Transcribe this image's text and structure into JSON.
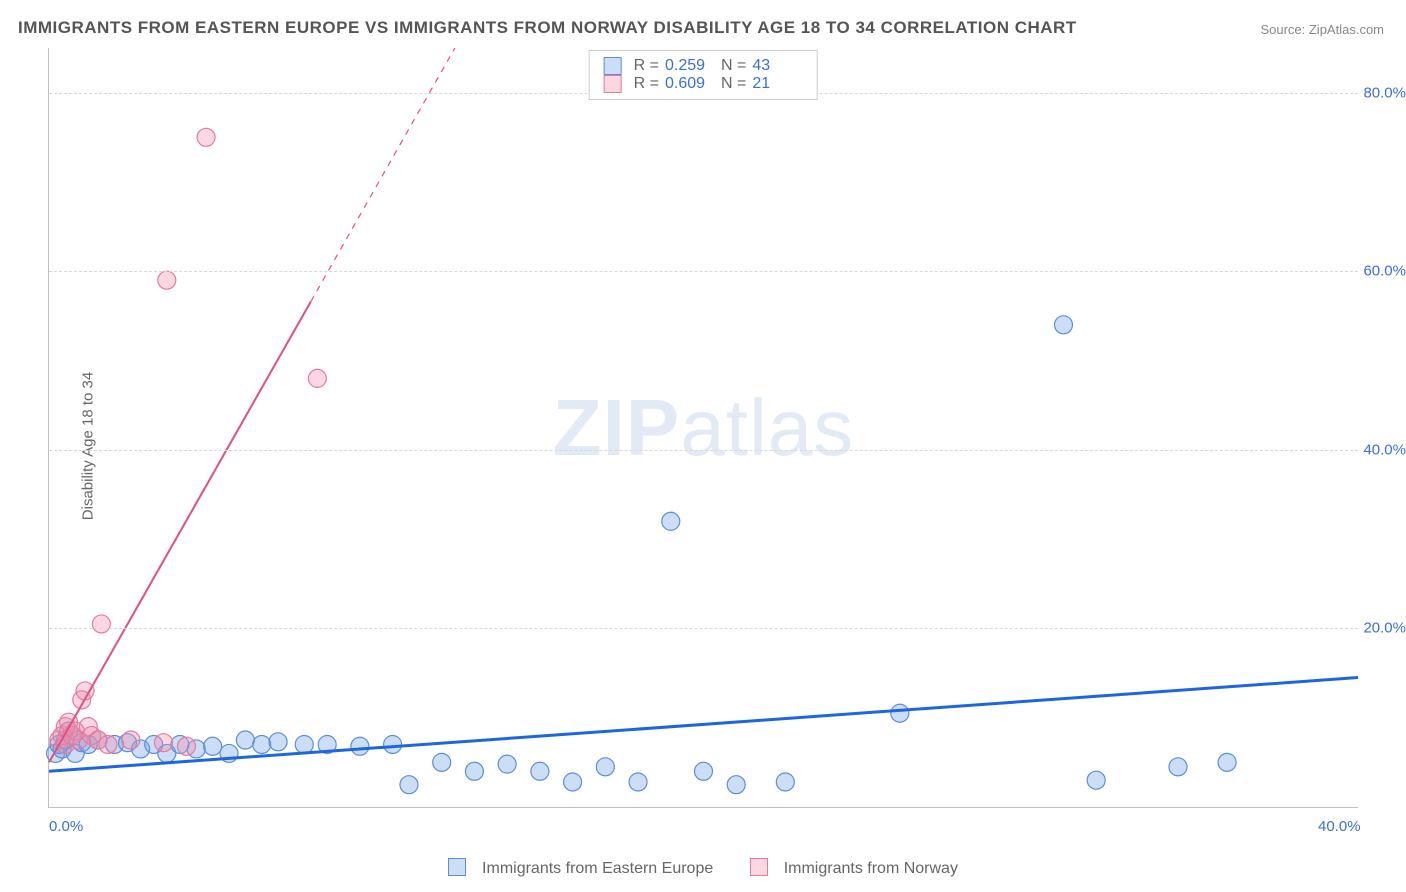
{
  "title": "IMMIGRANTS FROM EASTERN EUROPE VS IMMIGRANTS FROM NORWAY DISABILITY AGE 18 TO 34 CORRELATION CHART",
  "source": "Source: ZipAtlas.com",
  "watermark": {
    "bold": "ZIP",
    "rest": "atlas"
  },
  "y_axis_title": "Disability Age 18 to 34",
  "chart": {
    "type": "scatter",
    "background_color": "#ffffff",
    "grid_color": "#d8d8d8",
    "xlim": [
      0,
      40
    ],
    "ylim": [
      0,
      85
    ],
    "xticks": [
      {
        "value": 0,
        "label": "0.0%"
      },
      {
        "value": 40,
        "label": "40.0%"
      }
    ],
    "yticks": [
      {
        "value": 20,
        "label": "20.0%"
      },
      {
        "value": 40,
        "label": "40.0%"
      },
      {
        "value": 60,
        "label": "60.0%"
      },
      {
        "value": 80,
        "label": "80.0%"
      }
    ],
    "marker_radius": 9,
    "marker_stroke_width": 1.2,
    "tick_label_color": "#3b6fd6",
    "tick_label_fontsize": 15
  },
  "series": [
    {
      "key": "eastern_europe",
      "name": "Immigrants from Eastern Europe",
      "fill": "rgba(110,160,230,0.35)",
      "stroke": "#5a8fd6",
      "trend": {
        "color": "#1e66e0",
        "width": 3,
        "y_at_x0": 4.0,
        "y_at_x40": 14.5
      },
      "legend_r": "0.259",
      "legend_n": "43",
      "points": [
        [
          0.2,
          6.0
        ],
        [
          0.3,
          7.0
        ],
        [
          0.4,
          6.5
        ],
        [
          0.5,
          7.5
        ],
        [
          0.6,
          8.5
        ],
        [
          0.7,
          8.0
        ],
        [
          0.8,
          6.0
        ],
        [
          1.0,
          7.2
        ],
        [
          1.2,
          7.0
        ],
        [
          1.5,
          7.5
        ],
        [
          2.0,
          7.0
        ],
        [
          2.4,
          7.2
        ],
        [
          2.8,
          6.5
        ],
        [
          3.2,
          7.0
        ],
        [
          3.6,
          6.0
        ],
        [
          4.0,
          7.0
        ],
        [
          4.5,
          6.5
        ],
        [
          5.0,
          6.8
        ],
        [
          5.5,
          6.0
        ],
        [
          6.0,
          7.5
        ],
        [
          6.5,
          7.0
        ],
        [
          7.0,
          7.3
        ],
        [
          7.8,
          7.0
        ],
        [
          8.5,
          7.0
        ],
        [
          9.5,
          6.8
        ],
        [
          10.5,
          7.0
        ],
        [
          11.0,
          2.5
        ],
        [
          12.0,
          5.0
        ],
        [
          13.0,
          4.0
        ],
        [
          14.0,
          4.8
        ],
        [
          15.0,
          4.0
        ],
        [
          16.0,
          2.8
        ],
        [
          17.0,
          4.5
        ],
        [
          18.0,
          2.8
        ],
        [
          19.0,
          32.0
        ],
        [
          20.0,
          4.0
        ],
        [
          21.0,
          2.5
        ],
        [
          22.5,
          2.8
        ],
        [
          26.0,
          10.5
        ],
        [
          31.0,
          54.0
        ],
        [
          32.0,
          3.0
        ],
        [
          34.5,
          4.5
        ],
        [
          36.0,
          5.0
        ]
      ]
    },
    {
      "key": "norway",
      "name": "Immigrants from Norway",
      "fill": "rgba(240,140,170,0.35)",
      "stroke": "#e67aa0",
      "trend": {
        "color": "#e05080",
        "width": 2,
        "y_at_x0": 5.0,
        "slope": 6.45,
        "dash_after_x": 8.0
      },
      "legend_r": "0.609",
      "legend_n": "21",
      "points": [
        [
          0.3,
          7.5
        ],
        [
          0.4,
          8.0
        ],
        [
          0.5,
          9.0
        ],
        [
          0.5,
          7.0
        ],
        [
          0.6,
          9.5
        ],
        [
          0.7,
          8.0
        ],
        [
          0.8,
          8.5
        ],
        [
          0.9,
          7.5
        ],
        [
          1.0,
          12.0
        ],
        [
          1.1,
          13.0
        ],
        [
          1.2,
          9.0
        ],
        [
          1.3,
          8.0
        ],
        [
          1.5,
          7.5
        ],
        [
          1.6,
          20.5
        ],
        [
          1.8,
          7.0
        ],
        [
          2.5,
          7.5
        ],
        [
          3.5,
          7.2
        ],
        [
          3.6,
          59.0
        ],
        [
          4.2,
          6.8
        ],
        [
          4.8,
          75.0
        ],
        [
          8.2,
          48.0
        ]
      ]
    }
  ],
  "legend_labels": {
    "R": "R =",
    "N": "N ="
  }
}
